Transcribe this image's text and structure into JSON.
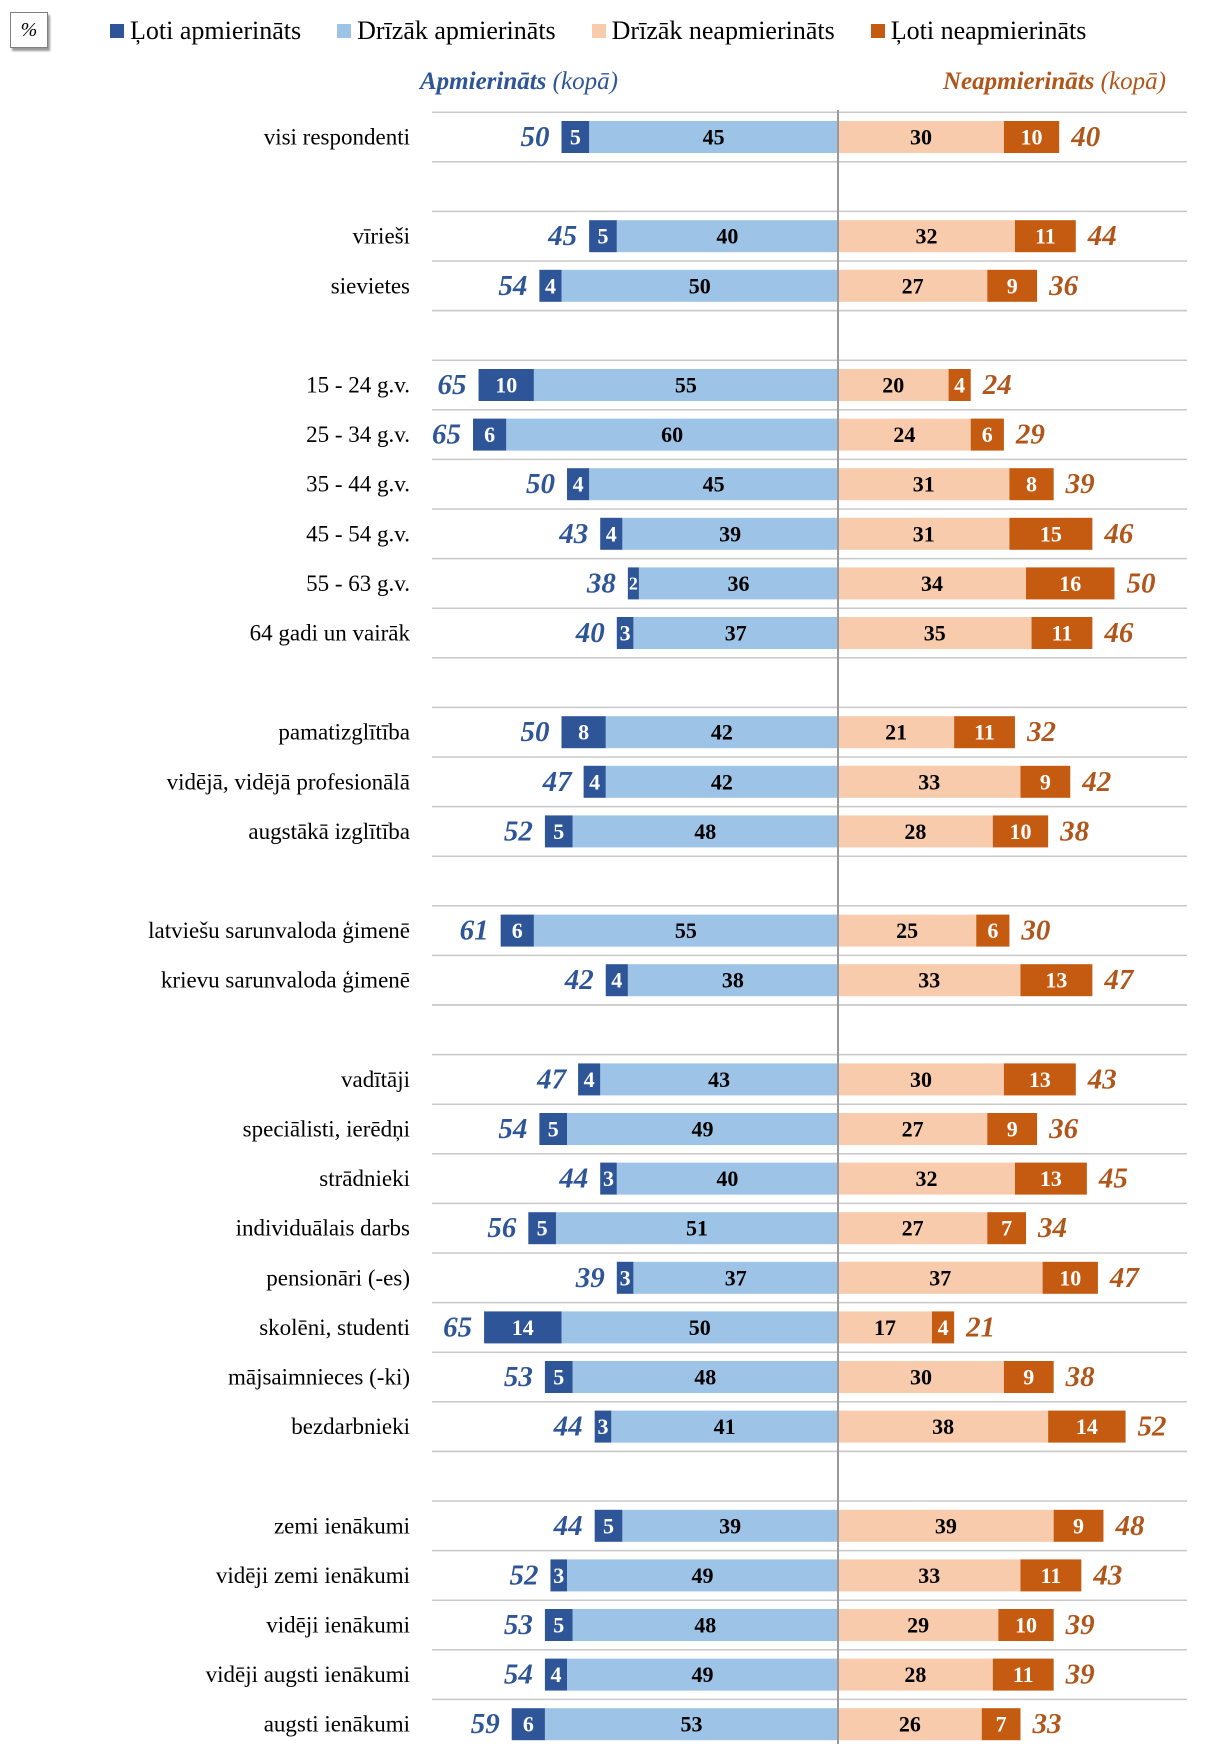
{
  "unit": "%",
  "legend": [
    {
      "label": "Ļoti apmierināts",
      "color": "#2e5597"
    },
    {
      "label": "Drīzāk apmierināts",
      "color": "#9dc3e6"
    },
    {
      "label": "Drīzāk neapmierināts",
      "color": "#f8cbad"
    },
    {
      "label": "Ļoti neapmierināts",
      "color": "#c55a11"
    }
  ],
  "headers": {
    "left_main": "Apmierināts",
    "left_sub": "(kopā)",
    "right_main": "Neapmierināts",
    "right_sub": "(kopā)",
    "left_color": "#2e5597",
    "right_color": "#b0561b"
  },
  "chart_data": {
    "type": "bar",
    "orientation": "horizontal-diverging",
    "unit": "%",
    "series": [
      {
        "name": "Ļoti apmierināts",
        "key": "very_sat",
        "color": "#2e5597"
      },
      {
        "name": "Drīzāk apmierināts",
        "key": "rather_sat",
        "color": "#9dc3e6"
      },
      {
        "name": "Drīzāk neapmierināts",
        "key": "rather_dis",
        "color": "#f8cbad"
      },
      {
        "name": "Ļoti neapmierināts",
        "key": "very_dis",
        "color": "#c55a11"
      }
    ],
    "rows": [
      {
        "label": "visi respondenti",
        "very_sat": 5,
        "rather_sat": 45,
        "sat_total": 50,
        "rather_dis": 30,
        "very_dis": 10,
        "dis_total": 40
      },
      null,
      {
        "label": "vīrieši",
        "very_sat": 5,
        "rather_sat": 40,
        "sat_total": 45,
        "rather_dis": 32,
        "very_dis": 11,
        "dis_total": 44
      },
      {
        "label": "sievietes",
        "very_sat": 4,
        "rather_sat": 50,
        "sat_total": 54,
        "rather_dis": 27,
        "very_dis": 9,
        "dis_total": 36
      },
      null,
      {
        "label": "15 - 24 g.v.",
        "very_sat": 10,
        "rather_sat": 55,
        "sat_total": 65,
        "rather_dis": 20,
        "very_dis": 4,
        "dis_total": 24
      },
      {
        "label": "25 - 34 g.v.",
        "very_sat": 6,
        "rather_sat": 60,
        "sat_total": 65,
        "rather_dis": 24,
        "very_dis": 6,
        "dis_total": 29
      },
      {
        "label": "35 - 44 g.v.",
        "very_sat": 4,
        "rather_sat": 45,
        "sat_total": 50,
        "rather_dis": 31,
        "very_dis": 8,
        "dis_total": 39
      },
      {
        "label": "45 - 54  g.v.",
        "very_sat": 4,
        "rather_sat": 39,
        "sat_total": 43,
        "rather_dis": 31,
        "very_dis": 15,
        "dis_total": 46
      },
      {
        "label": "55 - 63  g.v.",
        "very_sat": 2,
        "rather_sat": 36,
        "sat_total": 38,
        "rather_dis": 34,
        "very_dis": 16,
        "dis_total": 50
      },
      {
        "label": "64 gadi un vairāk",
        "very_sat": 3,
        "rather_sat": 37,
        "sat_total": 40,
        "rather_dis": 35,
        "very_dis": 11,
        "dis_total": 46
      },
      null,
      {
        "label": "pamatizglītība",
        "very_sat": 8,
        "rather_sat": 42,
        "sat_total": 50,
        "rather_dis": 21,
        "very_dis": 11,
        "dis_total": 32
      },
      {
        "label": "vidējā, vidējā profesionālā",
        "very_sat": 4,
        "rather_sat": 42,
        "sat_total": 47,
        "rather_dis": 33,
        "very_dis": 9,
        "dis_total": 42
      },
      {
        "label": "augstākā izglītība",
        "very_sat": 5,
        "rather_sat": 48,
        "sat_total": 52,
        "rather_dis": 28,
        "very_dis": 10,
        "dis_total": 38
      },
      null,
      {
        "label": "latviešu sarunvaloda ģimenē",
        "very_sat": 6,
        "rather_sat": 55,
        "sat_total": 61,
        "rather_dis": 25,
        "very_dis": 6,
        "dis_total": 30
      },
      {
        "label": "krievu sarunvaloda ģimenē",
        "very_sat": 4,
        "rather_sat": 38,
        "sat_total": 42,
        "rather_dis": 33,
        "very_dis": 13,
        "dis_total": 47
      },
      null,
      {
        "label": "vadītāji",
        "very_sat": 4,
        "rather_sat": 43,
        "sat_total": 47,
        "rather_dis": 30,
        "very_dis": 13,
        "dis_total": 43
      },
      {
        "label": "speciālisti, ierēdņi",
        "very_sat": 5,
        "rather_sat": 49,
        "sat_total": 54,
        "rather_dis": 27,
        "very_dis": 9,
        "dis_total": 36
      },
      {
        "label": "strādnieki",
        "very_sat": 3,
        "rather_sat": 40,
        "sat_total": 44,
        "rather_dis": 32,
        "very_dis": 13,
        "dis_total": 45
      },
      {
        "label": "individuālais darbs",
        "very_sat": 5,
        "rather_sat": 51,
        "sat_total": 56,
        "rather_dis": 27,
        "very_dis": 7,
        "dis_total": 34
      },
      {
        "label": "pensionāri (-es)",
        "very_sat": 3,
        "rather_sat": 37,
        "sat_total": 39,
        "rather_dis": 37,
        "very_dis": 10,
        "dis_total": 47
      },
      {
        "label": "skolēni, studenti",
        "very_sat": 14,
        "rather_sat": 50,
        "sat_total": 65,
        "rather_dis": 17,
        "very_dis": 4,
        "dis_total": 21
      },
      {
        "label": "mājsaimnieces (-ki)",
        "very_sat": 5,
        "rather_sat": 48,
        "sat_total": 53,
        "rather_dis": 30,
        "very_dis": 9,
        "dis_total": 38
      },
      {
        "label": "bezdarbnieki",
        "very_sat": 3,
        "rather_sat": 41,
        "sat_total": 44,
        "rather_dis": 38,
        "very_dis": 14,
        "dis_total": 52
      },
      null,
      {
        "label": "zemi ienākumi",
        "very_sat": 5,
        "rather_sat": 39,
        "sat_total": 44,
        "rather_dis": 39,
        "very_dis": 9,
        "dis_total": 48
      },
      {
        "label": "vidēji zemi  ienākumi",
        "very_sat": 3,
        "rather_sat": 49,
        "sat_total": 52,
        "rather_dis": 33,
        "very_dis": 11,
        "dis_total": 43
      },
      {
        "label": "vidēji  ienākumi",
        "very_sat": 5,
        "rather_sat": 48,
        "sat_total": 53,
        "rather_dis": 29,
        "very_dis": 10,
        "dis_total": 39
      },
      {
        "label": "vidēji augsti ienākumi",
        "very_sat": 4,
        "rather_sat": 49,
        "sat_total": 54,
        "rather_dis": 28,
        "very_dis": 11,
        "dis_total": 39
      },
      {
        "label": "augsti ienākumi",
        "very_sat": 6,
        "rather_sat": 53,
        "sat_total": 59,
        "rather_dis": 26,
        "very_dis": 7,
        "dis_total": 33
      }
    ]
  }
}
